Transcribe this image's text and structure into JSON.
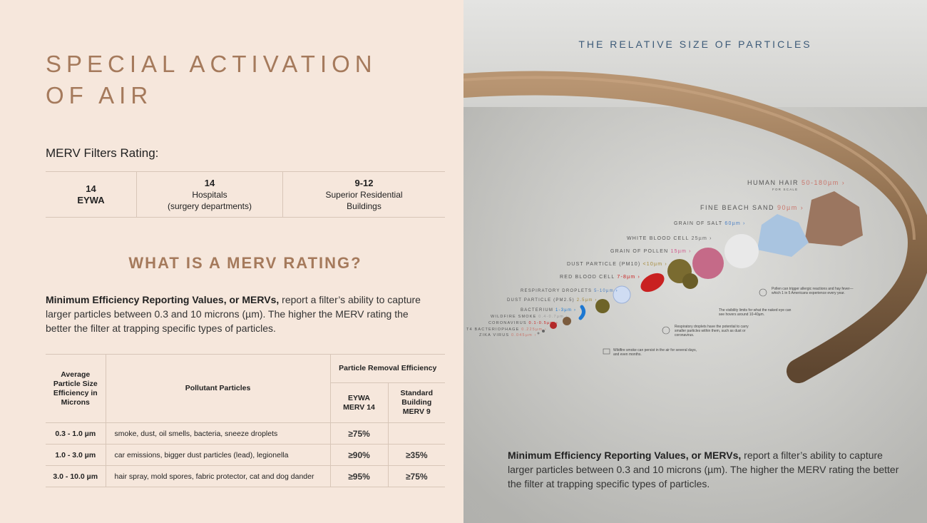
{
  "left": {
    "title_line1": "SPECIAL ACTIVATION",
    "title_line2": "OF AIR",
    "merv_label": "MERV Filters Rating:",
    "ratings": [
      {
        "value": "14",
        "label": "EYWA",
        "label2": ""
      },
      {
        "value": "14",
        "label": "Hospitals",
        "label2": "(surgery departments)"
      },
      {
        "value": "9-12",
        "label": "Superior Residential",
        "label2": "Buildings"
      }
    ],
    "section_heading": "WHAT IS A MERV RATING?",
    "paragraph_bold": "Minimum Efficiency Reporting Values, or MERVs,",
    "paragraph_rest": " report a filter’s ability to capture larger particles between 0.3 and 10 microns (µm). The higher the MERV rating the better the filter at trapping specific types of particles.",
    "table": {
      "col1": "Average Particle Size Efficiency in Microns",
      "col2": "Pollutant Particles",
      "group": "Particle Removal Efficiency",
      "col3": "EYWA MERV 14",
      "col4": "Standard Building MERV 9",
      "rows": [
        {
          "range": "0.3 - 1.0 µm",
          "pollutants": "smoke, dust, oil smells, bacteria, sneeze droplets",
          "eywa": "≥75%",
          "standard": ""
        },
        {
          "range": "1.0 - 3.0 µm",
          "pollutants": "car emissions, bigger dust particles (lead), legionella",
          "eywa": "≥90%",
          "standard": "≥35%"
        },
        {
          "range": "3.0 - 10.0 µm",
          "pollutants": "hair spray, mold spores, fabric protector, cat and dog dander",
          "eywa": "≥95%",
          "standard": "≥75%"
        }
      ]
    }
  },
  "right": {
    "heading": "THE RELATIVE SIZE OF PARTICLES",
    "particles": [
      {
        "name": "HUMAN HAIR",
        "size": "50-180µm ›",
        "sub": "FOR SCALE"
      },
      {
        "name": "FINE BEACH SAND",
        "size": "90µm ›"
      },
      {
        "name": "GRAIN OF SALT",
        "size": "60µm ›"
      },
      {
        "name": "WHITE BLOOD CELL",
        "size": "25µm ›"
      },
      {
        "name": "GRAIN OF POLLEN",
        "size": "15µm ›"
      },
      {
        "name": "DUST PARTICLE (PM10)",
        "size": "<10µm ›"
      },
      {
        "name": "RED BLOOD CELL",
        "size": "7-8µm ›"
      },
      {
        "name": "RESPIRATORY DROPLETS",
        "size": "5-10µm ›"
      },
      {
        "name": "DUST PARTICLE (PM2.5)",
        "size": "2.5µm ›"
      },
      {
        "name": "BACTERIUM",
        "size": "1-3µm ›"
      },
      {
        "name": "WILDFIRE SMOKE",
        "size": "0.4-0.7µm ›"
      },
      {
        "name": "CORONAVIRUS",
        "size": "0.1-0.5µm ›"
      },
      {
        "name": "T4 BACTERIOPHAGE",
        "size": "0.225µm ›"
      },
      {
        "name": "ZIKA VIRUS",
        "size": "0.045µm ›"
      }
    ],
    "notes": {
      "pollen": "Pollen can trigger allergic reactions and hay fever—which 1 in 5 Americans experience every year.",
      "visibility": "The visibility limits for what the naked eye can see hovers around 10-40µm.",
      "droplets": "Respiratory droplets have the potential to carry smaller particles within them, such as dust or coronavirus.",
      "smoke": "Wildfire smoke can persist in the air for several days, and even months."
    },
    "paragraph_bold": "Minimum Efficiency Reporting Values, or MERVs,",
    "paragraph_rest": " report a filter’s ability to capture larger particles between 0.3 and 10 microns (µm). The higher the MERV rating the better the filter at trapping specific types of particles."
  }
}
